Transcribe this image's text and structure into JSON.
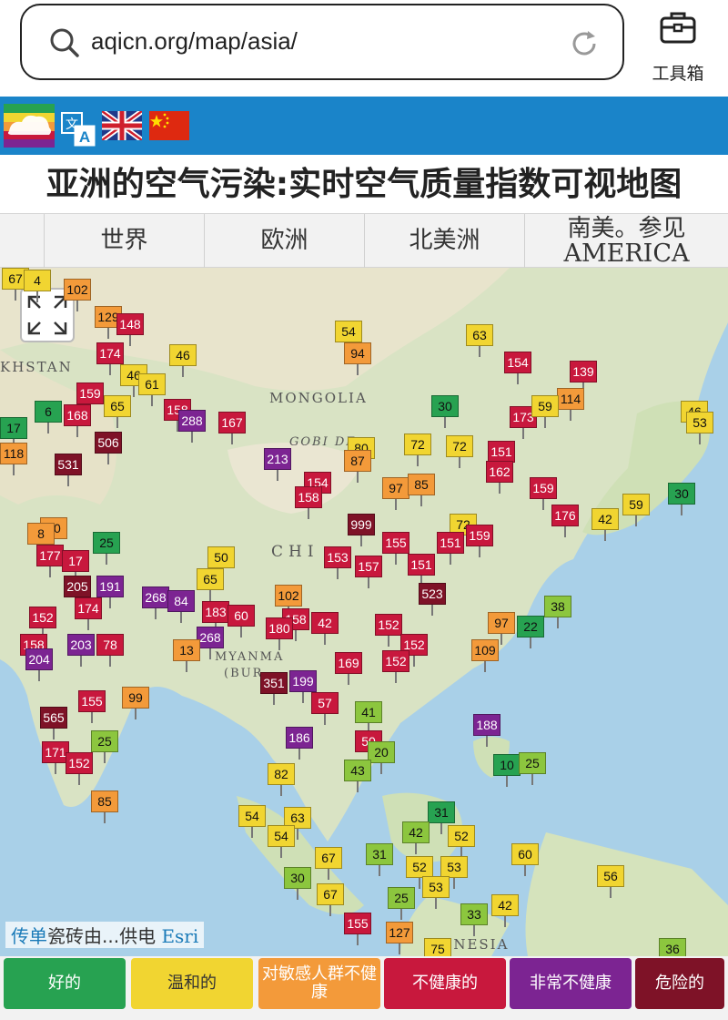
{
  "browser": {
    "url": "aqicn.org/map/asia/",
    "toolbox_label": "工具箱"
  },
  "page": {
    "title": "亚洲的空气污染:实时空气质量指数可视地图"
  },
  "tabs": [
    {
      "label": "世界"
    },
    {
      "label": "欧洲"
    },
    {
      "label": "北美洲"
    },
    {
      "label_line1": "南美。参见",
      "label_line2": "AMERICA"
    }
  ],
  "map": {
    "labels": {
      "khstan": "KHSTAN",
      "mongolia": "MONGOLIA",
      "gobi": "GOBI DE",
      "china": "CHI",
      "myanmar": "MYANMA",
      "burma": "(BUR",
      "indonesia": "DONESIA"
    },
    "attribution": {
      "part1": "传单",
      "part2": "瓷砖由...供电",
      "part3": "Esri"
    },
    "markers": [
      {
        "v": "67",
        "c": "#f1d531"
      },
      {
        "v": "4",
        "c": "#f1d531"
      },
      {
        "v": "102",
        "c": "#f39a3a"
      },
      {
        "v": "129",
        "c": "#f39a3a"
      },
      {
        "v": "148",
        "c": "#c8183d"
      },
      {
        "v": "174",
        "c": "#c8183d"
      },
      {
        "v": "46",
        "c": "#f1d531"
      },
      {
        "v": "54",
        "c": "#f1d531"
      },
      {
        "v": "94",
        "c": "#f39a3a"
      },
      {
        "v": "63",
        "c": "#f1d531"
      },
      {
        "v": "154",
        "c": "#c8183d"
      },
      {
        "v": "139",
        "c": "#c8183d"
      },
      {
        "v": "114",
        "c": "#f39a3a"
      },
      {
        "v": "46",
        "c": "#f1d531"
      },
      {
        "v": "61",
        "c": "#f1d531"
      },
      {
        "v": "159",
        "c": "#c8183d"
      },
      {
        "v": "65",
        "c": "#f1d531"
      },
      {
        "v": "6",
        "c": "#27a251"
      },
      {
        "v": "168",
        "c": "#c8183d"
      },
      {
        "v": "158",
        "c": "#c8183d"
      },
      {
        "v": "288",
        "c": "#7c2492"
      },
      {
        "v": "167",
        "c": "#c8183d"
      },
      {
        "v": "30",
        "c": "#27a251"
      },
      {
        "v": "173",
        "c": "#c8183d"
      },
      {
        "v": "59",
        "c": "#f1d531"
      },
      {
        "v": "46",
        "c": "#f1d531"
      },
      {
        "v": "53",
        "c": "#f1d531"
      },
      {
        "v": "17",
        "c": "#27a251"
      },
      {
        "v": "118",
        "c": "#f39a3a"
      },
      {
        "v": "506",
        "c": "#7e1227"
      },
      {
        "v": "531",
        "c": "#7e1227"
      },
      {
        "v": "213",
        "c": "#7c2492"
      },
      {
        "v": "80",
        "c": "#f1d531"
      },
      {
        "v": "72",
        "c": "#f1d531"
      },
      {
        "v": "72",
        "c": "#f1d531"
      },
      {
        "v": "151",
        "c": "#c8183d"
      },
      {
        "v": "87",
        "c": "#f39a3a"
      },
      {
        "v": "162",
        "c": "#c8183d"
      },
      {
        "v": "154",
        "c": "#c8183d"
      },
      {
        "v": "97",
        "c": "#f39a3a"
      },
      {
        "v": "85",
        "c": "#f39a3a"
      },
      {
        "v": "159",
        "c": "#c8183d"
      },
      {
        "v": "176",
        "c": "#c8183d"
      },
      {
        "v": "59",
        "c": "#f1d531"
      },
      {
        "v": "42",
        "c": "#f1d531"
      },
      {
        "v": "30",
        "c": "#27a251"
      },
      {
        "v": "158",
        "c": "#c8183d"
      },
      {
        "v": "999",
        "c": "#7e1227"
      },
      {
        "v": "90",
        "c": "#f39a3a"
      },
      {
        "v": "8",
        "c": "#f39a3a"
      },
      {
        "v": "25",
        "c": "#27a251"
      },
      {
        "v": "72",
        "c": "#f1d531"
      },
      {
        "v": "159",
        "c": "#c8183d"
      },
      {
        "v": "50",
        "c": "#f1d531"
      },
      {
        "v": "153",
        "c": "#c8183d"
      },
      {
        "v": "155",
        "c": "#c8183d"
      },
      {
        "v": "151",
        "c": "#c8183d"
      },
      {
        "v": "177",
        "c": "#c8183d"
      },
      {
        "v": "17",
        "c": "#c8183d"
      },
      {
        "v": "65",
        "c": "#f1d531"
      },
      {
        "v": "151",
        "c": "#c8183d"
      },
      {
        "v": "157",
        "c": "#c8183d"
      },
      {
        "v": "205",
        "c": "#7e1227"
      },
      {
        "v": "191",
        "c": "#7c2492"
      },
      {
        "v": "268",
        "c": "#7c2492"
      },
      {
        "v": "84",
        "c": "#7c2492"
      },
      {
        "v": "102",
        "c": "#f39a3a"
      },
      {
        "v": "523",
        "c": "#7e1227"
      },
      {
        "v": "38",
        "c": "#8cc63e"
      },
      {
        "v": "152",
        "c": "#c8183d"
      },
      {
        "v": "174",
        "c": "#c8183d"
      },
      {
        "v": "183",
        "c": "#c8183d"
      },
      {
        "v": "60",
        "c": "#c8183d"
      },
      {
        "v": "158",
        "c": "#c8183d"
      },
      {
        "v": "97",
        "c": "#f39a3a"
      },
      {
        "v": "22",
        "c": "#27a251"
      },
      {
        "v": "158",
        "c": "#c8183d"
      },
      {
        "v": "203",
        "c": "#7c2492"
      },
      {
        "v": "78",
        "c": "#c8183d"
      },
      {
        "v": "268",
        "c": "#7c2492"
      },
      {
        "v": "180",
        "c": "#c8183d"
      },
      {
        "v": "42",
        "c": "#c8183d"
      },
      {
        "v": "152",
        "c": "#c8183d"
      },
      {
        "v": "152",
        "c": "#c8183d"
      },
      {
        "v": "109",
        "c": "#f39a3a"
      },
      {
        "v": "204",
        "c": "#7c2492"
      },
      {
        "v": "13",
        "c": "#f39a3a"
      },
      {
        "v": "169",
        "c": "#c8183d"
      },
      {
        "v": "152",
        "c": "#c8183d"
      },
      {
        "v": "351",
        "c": "#7e1227"
      },
      {
        "v": "199",
        "c": "#7c2492"
      },
      {
        "v": "155",
        "c": "#c8183d"
      },
      {
        "v": "99",
        "c": "#f39a3a"
      },
      {
        "v": "57",
        "c": "#c8183d"
      },
      {
        "v": "41",
        "c": "#8cc63e"
      },
      {
        "v": "565",
        "c": "#7e1227"
      },
      {
        "v": "188",
        "c": "#7c2492"
      },
      {
        "v": "186",
        "c": "#7c2492"
      },
      {
        "v": "25",
        "c": "#8cc63e"
      },
      {
        "v": "171",
        "c": "#c8183d"
      },
      {
        "v": "50",
        "c": "#c8183d"
      },
      {
        "v": "20",
        "c": "#8cc63e"
      },
      {
        "v": "152",
        "c": "#c8183d"
      },
      {
        "v": "10",
        "c": "#27a251"
      },
      {
        "v": "25",
        "c": "#8cc63e"
      },
      {
        "v": "82",
        "c": "#f1d531"
      },
      {
        "v": "43",
        "c": "#8cc63e"
      },
      {
        "v": "85",
        "c": "#f39a3a"
      },
      {
        "v": "54",
        "c": "#f1d531"
      },
      {
        "v": "63",
        "c": "#f1d531"
      },
      {
        "v": "31",
        "c": "#27a251"
      },
      {
        "v": "54",
        "c": "#f1d531"
      },
      {
        "v": "42",
        "c": "#8cc63e"
      },
      {
        "v": "52",
        "c": "#f1d531"
      },
      {
        "v": "31",
        "c": "#8cc63e"
      },
      {
        "v": "52",
        "c": "#f1d531"
      },
      {
        "v": "53",
        "c": "#f1d531"
      },
      {
        "v": "60",
        "c": "#f1d531"
      },
      {
        "v": "67",
        "c": "#f1d531"
      },
      {
        "v": "30",
        "c": "#8cc63e"
      },
      {
        "v": "53",
        "c": "#f1d531"
      },
      {
        "v": "56",
        "c": "#f1d531"
      },
      {
        "v": "67",
        "c": "#f1d531"
      },
      {
        "v": "25",
        "c": "#8cc63e"
      },
      {
        "v": "42",
        "c": "#f1d531"
      },
      {
        "v": "33",
        "c": "#8cc63e"
      },
      {
        "v": "155",
        "c": "#c8183d"
      },
      {
        "v": "127",
        "c": "#f39a3a"
      },
      {
        "v": "75",
        "c": "#f1d531"
      },
      {
        "v": "36",
        "c": "#8cc63e"
      }
    ]
  },
  "legend": [
    {
      "label": "好的",
      "color": "#27a251"
    },
    {
      "label": "温和的",
      "color": "#f1d531",
      "text_color": "#333333"
    },
    {
      "label": "对敏感人群不健康",
      "color": "#f39a3a"
    },
    {
      "label": "不健康的",
      "color": "#c8183d"
    },
    {
      "label": "非常不健康",
      "color": "#7c2492"
    },
    {
      "label": "危险的",
      "color": "#7e1227"
    }
  ]
}
